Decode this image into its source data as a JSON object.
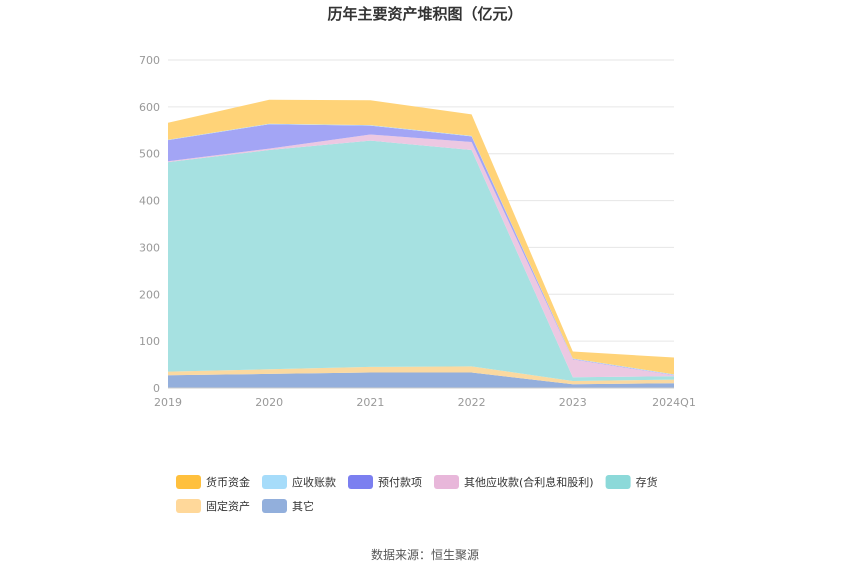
{
  "chart_data": {
    "type": "area",
    "stacked": true,
    "title": "历年主要资产堆积图（亿元）",
    "categories": [
      "2019",
      "2020",
      "2021",
      "2022",
      "2023",
      "2024Q1"
    ],
    "ylim": [
      0,
      700
    ],
    "yticks": [
      0,
      100,
      200,
      300,
      400,
      500,
      600,
      700
    ],
    "grid": true,
    "legend_position": "bottom",
    "series": [
      {
        "name": "其它",
        "color": "#94afdc",
        "values": [
          27,
          30,
          33,
          33,
          8,
          10
        ]
      },
      {
        "name": "固定资产",
        "color": "#fbd9a0",
        "values": [
          8,
          10,
          12,
          13,
          7,
          8
        ]
      },
      {
        "name": "存货",
        "color": "#a6e1e1",
        "values": [
          447,
          468,
          483,
          462,
          8,
          7
        ]
      },
      {
        "name": "其他应收款(合利息和股利)",
        "color": "#ecc8e2",
        "values": [
          2,
          3,
          13,
          17,
          38,
          2
        ]
      },
      {
        "name": "预付款项",
        "color": "#a3a5f5",
        "values": [
          45,
          52,
          19,
          12,
          1,
          1
        ]
      },
      {
        "name": "应收账款",
        "color": "#b5e2fa",
        "values": [
          1,
          1,
          1,
          1,
          1,
          1
        ]
      },
      {
        "name": "货币资金",
        "color": "#ffd378",
        "values": [
          36,
          51,
          53,
          46,
          15,
          36
        ]
      }
    ],
    "legend": [
      {
        "name": "货币资金",
        "color": "#ffc03d"
      },
      {
        "name": "应收账款",
        "color": "#a6dcfa"
      },
      {
        "name": "预付款项",
        "color": "#7b7ff0"
      },
      {
        "name": "其他应收款(合利息和股利)",
        "color": "#e8b7da"
      },
      {
        "name": "存货",
        "color": "#8cd9d9"
      },
      {
        "name": "固定资产",
        "color": "#ffd89a"
      },
      {
        "name": "其它",
        "color": "#92afdc"
      }
    ]
  },
  "source": "数据来源：恒生聚源"
}
